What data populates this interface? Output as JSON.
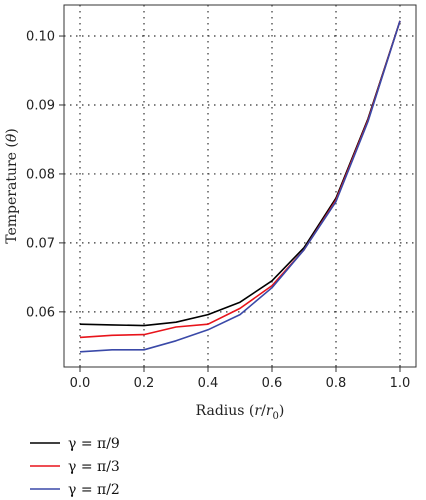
{
  "chart_data": {
    "type": "line",
    "title": "",
    "xlabel": "Radius (r/r₀)",
    "ylabel": "Temperature (θ)",
    "xlim": [
      -0.05,
      1.05
    ],
    "ylim": [
      0.052,
      0.1045
    ],
    "xticks": [
      0.0,
      0.2,
      0.4,
      0.6,
      0.8,
      1.0
    ],
    "xtick_labels": [
      "0.0",
      "0.2",
      "0.4",
      "0.6",
      "0.8",
      "1.0"
    ],
    "yticks": [
      0.06,
      0.07,
      0.08,
      0.09,
      0.1
    ],
    "ytick_labels": [
      "0.06",
      "0.07",
      "0.08",
      "0.09",
      "0.10"
    ],
    "grid": true,
    "legend_position": "bottom-left, below plot",
    "x": [
      0.0,
      0.1,
      0.2,
      0.3,
      0.4,
      0.5,
      0.6,
      0.7,
      0.8,
      0.9,
      1.0
    ],
    "series": [
      {
        "name": "γ = π/9",
        "color": "#000000",
        "values": [
          0.0582,
          0.0581,
          0.058,
          0.0585,
          0.0596,
          0.0614,
          0.0645,
          0.0693,
          0.0765,
          0.088,
          0.1022
        ]
      },
      {
        "name": "γ = π/3",
        "color": "#e8141b",
        "values": [
          0.0563,
          0.0566,
          0.0567,
          0.0578,
          0.0582,
          0.0605,
          0.0638,
          0.069,
          0.0762,
          0.0878,
          0.1022
        ]
      },
      {
        "name": "γ = π/2",
        "color": "#3a49a8",
        "values": [
          0.0542,
          0.0545,
          0.0545,
          0.0558,
          0.0574,
          0.0596,
          0.0635,
          0.069,
          0.076,
          0.0876,
          0.1022
        ]
      }
    ]
  }
}
